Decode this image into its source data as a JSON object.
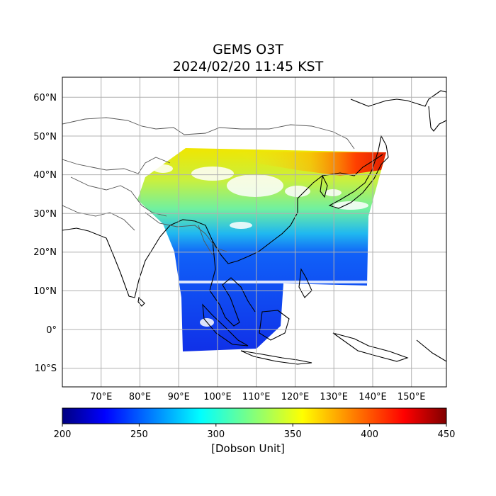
{
  "title": "GEMS O3T",
  "subtitle": "2024/02/20 11:45 KST",
  "map": {
    "lon_range": [
      61,
      160
    ],
    "lat_range": [
      -15,
      65
    ],
    "lat_ticks": [
      {
        "value": 60,
        "label": "60°N"
      },
      {
        "value": 50,
        "label": "50°N"
      },
      {
        "value": 40,
        "label": "40°N"
      },
      {
        "value": 30,
        "label": "30°N"
      },
      {
        "value": 20,
        "label": "20°N"
      },
      {
        "value": 10,
        "label": "10°N"
      },
      {
        "value": 0,
        "label": "0°"
      },
      {
        "value": -10,
        "label": "10°S"
      }
    ],
    "lon_ticks": [
      {
        "value": 70,
        "label": "70°E"
      },
      {
        "value": 80,
        "label": "80°E"
      },
      {
        "value": 90,
        "label": "90°E"
      },
      {
        "value": 100,
        "label": "100°E"
      },
      {
        "value": 110,
        "label": "110°E"
      },
      {
        "value": 120,
        "label": "120°E"
      },
      {
        "value": 130,
        "label": "130°E"
      },
      {
        "value": 140,
        "label": "140°E"
      },
      {
        "value": 150,
        "label": "150°E"
      }
    ],
    "grid": true
  },
  "colorbar": {
    "min": 200,
    "max": 450,
    "ticks": [
      "200",
      "250",
      "300",
      "350",
      "400",
      "450"
    ],
    "colormap": "jet",
    "label": "[Dobson Unit]"
  }
}
